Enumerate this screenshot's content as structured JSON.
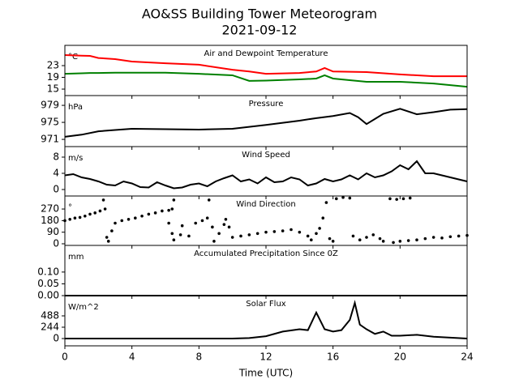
{
  "title": "AO&SS Building Tower Meteorogram",
  "subtitle": "2021-09-12",
  "chart_data": [
    {
      "type": "line",
      "title": "Air and Dewpoint Temperature",
      "unit": "°C",
      "x": [
        0,
        1,
        1.5,
        2,
        3,
        4,
        6,
        8,
        10,
        11,
        12,
        14,
        15,
        15.5,
        16,
        18,
        20,
        22,
        24
      ],
      "series": [
        {
          "color": "#ff0000",
          "values": [
            26.6,
            26.4,
            26.3,
            25.6,
            25.2,
            24.4,
            23.8,
            23.3,
            21.6,
            21.0,
            20.2,
            20.5,
            21.0,
            22.2,
            21.0,
            20.8,
            20.0,
            19.4,
            19.4
          ]
        },
        {
          "color": "#008000",
          "values": [
            20.2,
            20.4,
            20.5,
            20.5,
            20.6,
            20.6,
            20.6,
            20.2,
            19.7,
            17.8,
            17.9,
            18.3,
            18.6,
            19.7,
            18.6,
            17.5,
            17.5,
            16.9,
            15.8
          ]
        }
      ],
      "ylim": [
        12.8,
        29.9
      ],
      "yticks": [
        15,
        19,
        23
      ]
    },
    {
      "type": "line",
      "title": "Pressure",
      "unit": "hPa",
      "x": [
        0,
        1,
        2,
        3,
        4,
        6,
        8,
        10,
        12,
        13,
        14,
        15,
        16,
        17,
        17.5,
        18,
        18.5,
        19,
        20,
        21,
        22,
        23,
        24
      ],
      "series": [
        {
          "color": "#000000",
          "values": [
            971.6,
            972.1,
            972.9,
            973.2,
            973.5,
            973.4,
            973.3,
            973.5,
            974.4,
            974.9,
            975.4,
            976.0,
            976.5,
            977.2,
            976.2,
            974.6,
            975.8,
            977.0,
            978.2,
            976.9,
            977.4,
            978.0,
            978.1
          ]
        }
      ],
      "ylim": [
        969.3,
        981.3
      ],
      "yticks": [
        971,
        975,
        979
      ]
    },
    {
      "type": "line",
      "title": "Wind Speed",
      "unit": "m/s",
      "x": [
        0,
        0.5,
        1,
        1.5,
        2,
        2.5,
        3,
        3.5,
        4,
        4.5,
        5,
        5.5,
        6,
        6.5,
        7,
        7.5,
        8,
        8.5,
        9,
        9.5,
        10,
        10.5,
        11,
        11.5,
        12,
        12.5,
        13,
        13.5,
        14,
        14.5,
        15,
        15.5,
        16,
        16.5,
        17,
        17.5,
        18,
        18.5,
        19,
        19.5,
        20,
        20.5,
        21,
        21.5,
        22,
        22.5,
        23,
        23.5,
        24
      ],
      "series": [
        {
          "color": "#000000",
          "values": [
            3.5,
            3.8,
            3.0,
            2.6,
            2.0,
            1.2,
            1.0,
            2.0,
            1.5,
            0.6,
            0.5,
            1.8,
            1.0,
            0.3,
            0.5,
            1.2,
            1.5,
            0.8,
            2.0,
            2.8,
            3.5,
            2.0,
            2.5,
            1.5,
            3.0,
            1.8,
            2.0,
            3.0,
            2.5,
            1.0,
            1.5,
            2.6,
            2.0,
            2.5,
            3.5,
            2.5,
            4.0,
            3.0,
            3.5,
            4.5,
            6.0,
            5.0,
            7.0,
            4.0,
            4.0,
            3.5,
            3.0,
            2.5,
            2.0
          ]
        }
      ],
      "ylim": [
        -1.6,
        10.6
      ],
      "yticks": [
        0,
        4,
        8
      ]
    },
    {
      "type": "scatter",
      "title": "Wind Direction",
      "unit": "°",
      "x": [
        0,
        0.3,
        0.6,
        0.9,
        1.2,
        1.5,
        1.8,
        2.1,
        2.3,
        2.4,
        2.5,
        2.6,
        2.8,
        3,
        3.4,
        3.8,
        4.2,
        4.6,
        5,
        5.4,
        5.8,
        6.2,
        6.4,
        6.5,
        6.2,
        6.4,
        6.5,
        6.9,
        7,
        7.4,
        7.8,
        8.2,
        8.5,
        8.6,
        8.8,
        8.9,
        9.2,
        9.5,
        9.6,
        9.8,
        10,
        10.5,
        11,
        11.5,
        12,
        12.5,
        13,
        13.5,
        14,
        14.5,
        14.7,
        15,
        15.2,
        15.4,
        15.6,
        15.8,
        16,
        16.2,
        16.6,
        17,
        17.2,
        17.6,
        18,
        18.4,
        18.8,
        19,
        19.4,
        19.8,
        20.2,
        20.6,
        19.6,
        20,
        20.5,
        21,
        21.5,
        22,
        22.5,
        23,
        23.5,
        24
      ],
      "series": [
        {
          "color": "#000000",
          "values": [
            180,
            190,
            200,
            205,
            215,
            230,
            240,
            255,
            340,
            270,
            50,
            20,
            100,
            160,
            180,
            190,
            200,
            215,
            230,
            240,
            255,
            260,
            270,
            340,
            160,
            80,
            30,
            70,
            140,
            60,
            160,
            180,
            200,
            340,
            130,
            20,
            80,
            150,
            190,
            130,
            50,
            60,
            70,
            80,
            90,
            95,
            100,
            110,
            90,
            60,
            30,
            80,
            120,
            200,
            320,
            40,
            20,
            350,
            360,
            355,
            60,
            30,
            50,
            70,
            40,
            20,
            350,
            345,
            350,
            355,
            10,
            20,
            25,
            30,
            40,
            50,
            45,
            55,
            60,
            65
          ]
        }
      ],
      "ylim": [
        -12.6,
        371
      ],
      "yticks": [
        0,
        90,
        180,
        270
      ]
    },
    {
      "type": "line",
      "title": "Accumulated Precipitation Since 0Z",
      "unit": "mm",
      "x": [
        0,
        24
      ],
      "series": [
        {
          "color": "#000000",
          "values": [
            0,
            0
          ]
        }
      ],
      "ylim": [
        0,
        0.213
      ],
      "yticks": [
        {
          "value": 0,
          "label": "0.00"
        },
        {
          "value": 0.05,
          "label": "0.05"
        },
        {
          "value": 0.1,
          "label": "0.10"
        }
      ]
    },
    {
      "type": "line",
      "title": "Solar Flux",
      "unit": "W/m^2",
      "x": [
        0,
        10,
        11,
        12,
        13,
        14,
        14.5,
        15,
        15.5,
        16,
        16.5,
        17,
        17.3,
        17.6,
        18,
        18.5,
        19,
        19.5,
        20,
        21,
        22,
        23,
        24
      ],
      "series": [
        {
          "color": "#000000",
          "values": [
            0,
            0,
            10,
            50,
            150,
            200,
            180,
            560,
            200,
            150,
            180,
            400,
            767,
            300,
            200,
            100,
            150,
            60,
            60,
            80,
            40,
            20,
            0
          ]
        }
      ],
      "ylim": [
        -157,
        924
      ],
      "yticks": [
        0,
        244,
        488
      ],
      "xlim": [
        0,
        24
      ],
      "xticks": [
        0,
        4,
        8,
        12,
        16,
        20,
        24
      ],
      "xlabel": "Time (UTC)"
    }
  ]
}
